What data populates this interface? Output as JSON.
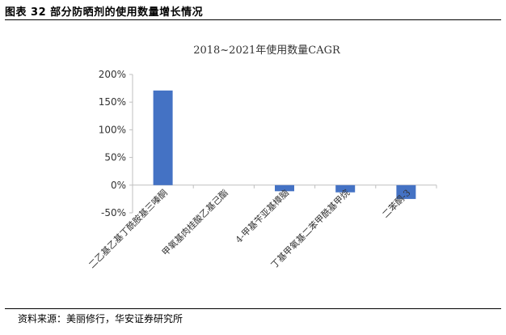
{
  "header": {
    "figure_title": "图表 32 部分防晒剂的使用数量增长情况"
  },
  "footer": {
    "source": "资料来源：美丽修行，华安证券研究所"
  },
  "colors": {
    "bar": "#4472C4",
    "axis": "#bfbfbf",
    "text": "#333333"
  },
  "chart_data": {
    "type": "bar",
    "title": "2018~2021年使用数量CAGR",
    "categories": [
      "二乙基乙基丁酰胺基三嗪酮",
      "甲氧基肉桂酸乙基己酯",
      "4-甲基苄亚基樟脑",
      "丁基甲氧基二苯甲酰基甲烷",
      "二苯酮-3"
    ],
    "values": [
      171,
      0,
      -11,
      -13,
      -25
    ],
    "unit": "%",
    "ylim": [
      -50,
      200
    ],
    "yticks": [
      -50,
      0,
      50,
      100,
      150,
      200
    ],
    "ytick_labels": [
      "-50%",
      "0%",
      "50%",
      "100%",
      "150%",
      "200%"
    ],
    "grid": false,
    "legend": "none"
  }
}
